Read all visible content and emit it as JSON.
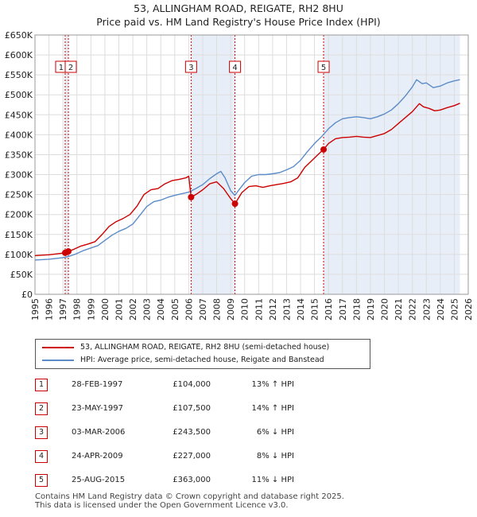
{
  "chart_data": {
    "type": "line",
    "title": "53, ALLINGHAM ROAD, REIGATE, RH2 8HU",
    "subtitle": "Price paid vs. HM Land Registry's House Price Index (HPI)",
    "xlim": [
      1995,
      2026
    ],
    "ylim": [
      0,
      650000
    ],
    "x_ticks": [
      1995,
      1996,
      1997,
      1998,
      1999,
      2000,
      2001,
      2002,
      2003,
      2004,
      2005,
      2006,
      2007,
      2008,
      2009,
      2010,
      2011,
      2012,
      2013,
      2014,
      2015,
      2016,
      2017,
      2018,
      2019,
      2020,
      2021,
      2022,
      2023,
      2024,
      2025,
      2026
    ],
    "y_ticks": [
      {
        "value": 0,
        "label": "£0"
      },
      {
        "value": 50000,
        "label": "£50K"
      },
      {
        "value": 100000,
        "label": "£100K"
      },
      {
        "value": 150000,
        "label": "£150K"
      },
      {
        "value": 200000,
        "label": "£200K"
      },
      {
        "value": 250000,
        "label": "£250K"
      },
      {
        "value": 300000,
        "label": "£300K"
      },
      {
        "value": 350000,
        "label": "£350K"
      },
      {
        "value": 400000,
        "label": "£400K"
      },
      {
        "value": 450000,
        "label": "£450K"
      },
      {
        "value": 500000,
        "label": "£500K"
      },
      {
        "value": 550000,
        "label": "£550K"
      },
      {
        "value": 600000,
        "label": "£600K"
      },
      {
        "value": 650000,
        "label": "£650K"
      }
    ],
    "grid": true,
    "series": [
      {
        "name": "53, ALLINGHAM ROAD, REIGATE, RH2 8HU (semi-detached house)",
        "color": "#cc0000",
        "x": [
          1995.0,
          1995.5,
          1996.0,
          1996.5,
          1997.16,
          1997.39,
          1997.8,
          1998.3,
          1998.8,
          1999.3,
          1999.8,
          2000.3,
          2000.8,
          2001.3,
          2001.8,
          2002.3,
          2002.8,
          2003.3,
          2003.8,
          2004.3,
          2004.8,
          2005.3,
          2005.8,
          2006.0,
          2006.17,
          2006.6,
          2007.0,
          2007.5,
          2008.0,
          2008.5,
          2009.0,
          2009.31,
          2009.8,
          2010.3,
          2010.8,
          2011.3,
          2011.8,
          2012.3,
          2012.8,
          2013.3,
          2013.8,
          2014.3,
          2014.8,
          2015.3,
          2015.65,
          2016.0,
          2016.5,
          2017.0,
          2017.5,
          2018.0,
          2018.5,
          2019.0,
          2019.5,
          2020.0,
          2020.5,
          2021.0,
          2021.5,
          2022.0,
          2022.5,
          2022.8,
          2023.2,
          2023.6,
          2024.0,
          2024.5,
          2025.0,
          2025.4
        ],
        "y": [
          97000,
          98000,
          99000,
          101000,
          104000,
          107500,
          113000,
          121000,
          126000,
          132000,
          150000,
          170000,
          182000,
          190000,
          200000,
          221000,
          250000,
          262000,
          265000,
          277000,
          285000,
          288000,
          292000,
          296000,
          243500,
          252000,
          262000,
          277000,
          282000,
          265000,
          240000,
          227000,
          255000,
          270000,
          272000,
          268000,
          272000,
          275000,
          278000,
          282000,
          292000,
          318000,
          335000,
          352000,
          363000,
          378000,
          390000,
          393000,
          394000,
          396000,
          394000,
          393000,
          398000,
          403000,
          413000,
          428000,
          443000,
          458000,
          478000,
          470000,
          466000,
          460000,
          462000,
          468000,
          473000,
          479000
        ]
      },
      {
        "name": "HPI: Average price, semi-detached house, Reigate and Banstead",
        "color": "#5b8cc8",
        "x": [
          1995.0,
          1995.5,
          1996.0,
          1996.5,
          1997.0,
          1997.5,
          1998.0,
          1998.5,
          1999.0,
          1999.5,
          2000.0,
          2000.5,
          2001.0,
          2001.5,
          2002.0,
          2002.5,
          2003.0,
          2003.5,
          2004.0,
          2004.5,
          2005.0,
          2005.5,
          2006.0,
          2006.5,
          2007.0,
          2007.5,
          2008.0,
          2008.3,
          2008.6,
          2009.0,
          2009.3,
          2009.6,
          2010.0,
          2010.5,
          2011.0,
          2011.5,
          2012.0,
          2012.5,
          2013.0,
          2013.5,
          2014.0,
          2014.5,
          2015.0,
          2015.5,
          2016.0,
          2016.5,
          2017.0,
          2017.5,
          2018.0,
          2018.5,
          2019.0,
          2019.5,
          2020.0,
          2020.5,
          2021.0,
          2021.5,
          2022.0,
          2022.3,
          2022.7,
          2023.0,
          2023.5,
          2024.0,
          2024.5,
          2025.0,
          2025.4
        ],
        "y": [
          86000,
          87000,
          88000,
          90000,
          92000,
          96000,
          102000,
          110000,
          116000,
          122000,
          135000,
          148000,
          158000,
          165000,
          176000,
          198000,
          220000,
          232000,
          236000,
          243000,
          248000,
          252000,
          256000,
          265000,
          275000,
          290000,
          302000,
          308000,
          292000,
          260000,
          248000,
          262000,
          280000,
          296000,
          300000,
          300000,
          302000,
          305000,
          312000,
          320000,
          336000,
          358000,
          378000,
          395000,
          415000,
          430000,
          440000,
          443000,
          445000,
          443000,
          440000,
          445000,
          452000,
          462000,
          478000,
          497000,
          520000,
          538000,
          528000,
          530000,
          518000,
          522000,
          530000,
          535000,
          538000
        ]
      }
    ],
    "sales": [
      {
        "id": "1",
        "x": 1997.16,
        "y": 104000
      },
      {
        "id": "2",
        "x": 1997.39,
        "y": 107500
      },
      {
        "id": "3",
        "x": 2006.17,
        "y": 243500
      },
      {
        "id": "4",
        "x": 2009.31,
        "y": 227000
      },
      {
        "id": "5",
        "x": 2015.65,
        "y": 363000
      }
    ],
    "shaded_ranges": [
      [
        1997.16,
        1997.39
      ],
      [
        2006.17,
        2009.31
      ],
      [
        2015.65,
        2025.4
      ]
    ],
    "colors": {
      "red": "#cc0000",
      "blue": "#5b8cc8",
      "shade": "#e8eef8",
      "grid": "#dddddd"
    }
  },
  "legend": {
    "property": "53, ALLINGHAM ROAD, REIGATE, RH2 8HU (semi-detached house)",
    "hpi": "HPI: Average price, semi-detached house, Reigate and Banstead"
  },
  "transactions": [
    {
      "num": "1",
      "date": "28-FEB-1997",
      "price": "£104,000",
      "hpi": "13% ↑ HPI"
    },
    {
      "num": "2",
      "date": "23-MAY-1997",
      "price": "£107,500",
      "hpi": "14% ↑ HPI"
    },
    {
      "num": "3",
      "date": "03-MAR-2006",
      "price": "£243,500",
      "hpi": "6% ↓ HPI"
    },
    {
      "num": "4",
      "date": "24-APR-2009",
      "price": "£227,000",
      "hpi": "8% ↓ HPI"
    },
    {
      "num": "5",
      "date": "25-AUG-2015",
      "price": "£363,000",
      "hpi": "11% ↓ HPI"
    }
  ],
  "footer": {
    "line1": "Contains HM Land Registry data © Crown copyright and database right 2025.",
    "line2": "This data is licensed under the Open Government Licence v3.0."
  }
}
